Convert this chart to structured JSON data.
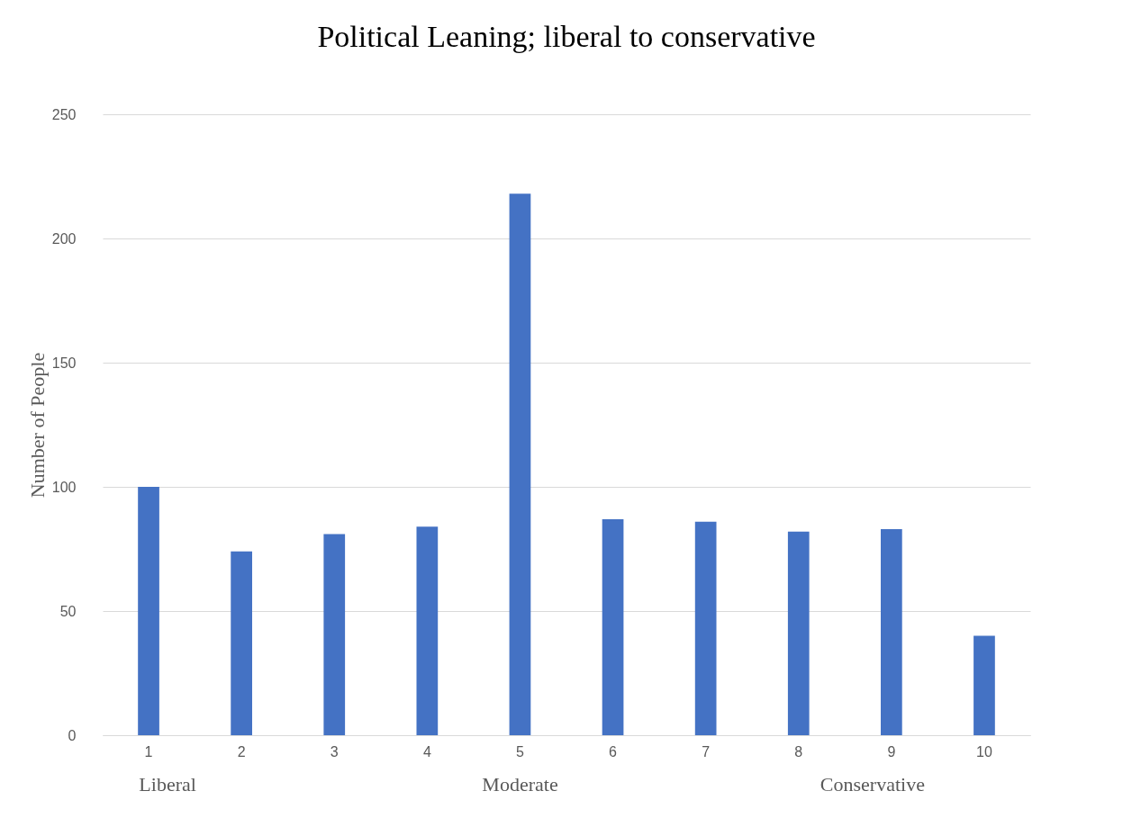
{
  "chart_data": {
    "type": "bar",
    "title": "Political Leaning; liberal to conservative",
    "ylabel": "Number of People",
    "categories": [
      "1",
      "2",
      "3",
      "4",
      "5",
      "6",
      "7",
      "8",
      "9",
      "10"
    ],
    "values": [
      100,
      74,
      81,
      84,
      218,
      87,
      86,
      82,
      83,
      40
    ],
    "color": "#4472c4",
    "ylim": [
      0,
      250
    ],
    "yticks": [
      0,
      50,
      100,
      150,
      200,
      250
    ],
    "grid": "y",
    "annotations": [
      "Liberal",
      "Moderate",
      "Conservative"
    ]
  }
}
